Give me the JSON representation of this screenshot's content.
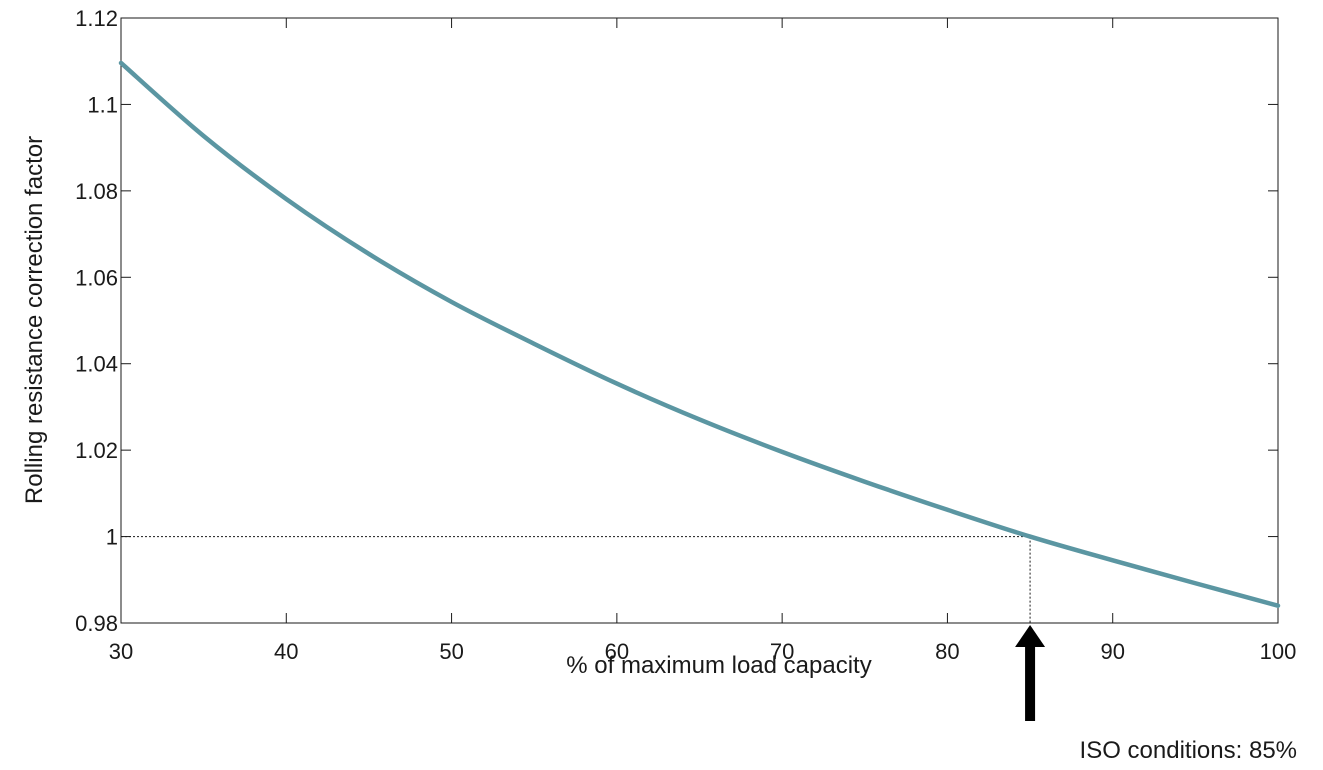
{
  "chart_data": {
    "type": "line",
    "title": "",
    "xlabel": "% of maximum load capacity",
    "ylabel": "Rolling resistance correction factor",
    "xlim": [
      30,
      100
    ],
    "ylim": [
      0.98,
      1.12
    ],
    "x_ticks": [
      30,
      40,
      50,
      60,
      70,
      80,
      90,
      100
    ],
    "y_ticks": [
      0.98,
      1,
      1.02,
      1.04,
      1.06,
      1.08,
      1.1,
      1.12
    ],
    "y_tick_labels": [
      "0.98",
      "1",
      "1.02",
      "1.04",
      "1.06",
      "1.08",
      "1.1",
      "1.12"
    ],
    "grid": false,
    "series": [
      {
        "color": "#5b96a2",
        "x": [
          30,
          35,
          40,
          45,
          50,
          55,
          60,
          65,
          70,
          75,
          80,
          85,
          90,
          95,
          100
        ],
        "y": [
          1.1096,
          1.0927,
          1.0781,
          1.0654,
          1.0543,
          1.0446,
          1.0354,
          1.0271,
          1.0196,
          1.0127,
          1.0062,
          1.0,
          0.9945,
          0.9892,
          0.984
        ]
      }
    ],
    "reference": {
      "x": 85,
      "y": 1
    },
    "annotations": [
      {
        "text": "ISO conditions: 85%",
        "x": 85
      }
    ]
  }
}
